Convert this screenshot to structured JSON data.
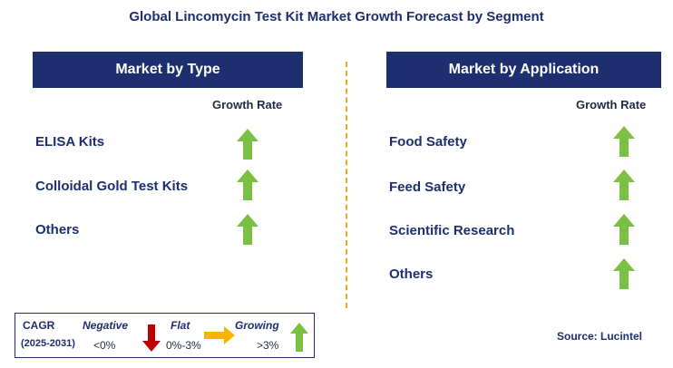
{
  "title": "Global Lincomycin Test Kit Market Growth Forecast by Segment",
  "left_panel": {
    "header": "Market by Type",
    "growth_label": "Growth Rate",
    "items": [
      {
        "label": "ELISA Kits",
        "trend": "growing"
      },
      {
        "label": "Colloidal Gold Test Kits",
        "trend": "growing"
      },
      {
        "label": "Others",
        "trend": "growing"
      }
    ]
  },
  "right_panel": {
    "header": "Market by Application",
    "growth_label": "Growth Rate",
    "items": [
      {
        "label": "Food Safety",
        "trend": "growing"
      },
      {
        "label": "Feed Safety",
        "trend": "growing"
      },
      {
        "label": "Scientific Research",
        "trend": "growing"
      },
      {
        "label": "Others",
        "trend": "growing"
      }
    ]
  },
  "legend": {
    "cagr_label": "CAGR",
    "period": "(2025-2031)",
    "negative_label": "Negative",
    "negative_range": "<0%",
    "flat_label": "Flat",
    "flat_range": "0%-3%",
    "growing_label": "Growing",
    "growing_range": ">3%"
  },
  "source": "Source: Lucintel",
  "colors": {
    "header_bg": "#1d2f6f",
    "growing": "#7ac143",
    "negative": "#c00000",
    "flat": "#f7b500",
    "divider": "#f0a818"
  }
}
